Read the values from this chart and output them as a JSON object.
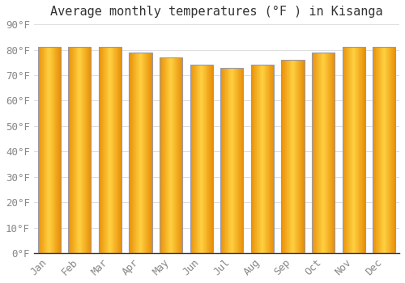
{
  "title": "Average monthly temperatures (°F ) in Kisanga",
  "months": [
    "Jan",
    "Feb",
    "Mar",
    "Apr",
    "May",
    "Jun",
    "Jul",
    "Aug",
    "Sep",
    "Oct",
    "Nov",
    "Dec"
  ],
  "values": [
    81,
    81,
    81,
    79,
    77,
    74,
    73,
    74,
    76,
    79,
    81,
    81
  ],
  "bar_color_left": "#E8900A",
  "bar_color_center": "#FFD040",
  "bar_edge_color": "#B8820A",
  "background_color": "#FFFFFF",
  "grid_color": "#DDDDDD",
  "ylim": [
    0,
    90
  ],
  "yticks": [
    0,
    10,
    20,
    30,
    40,
    50,
    60,
    70,
    80,
    90
  ],
  "title_fontsize": 11,
  "tick_fontsize": 9,
  "bar_width": 0.75
}
